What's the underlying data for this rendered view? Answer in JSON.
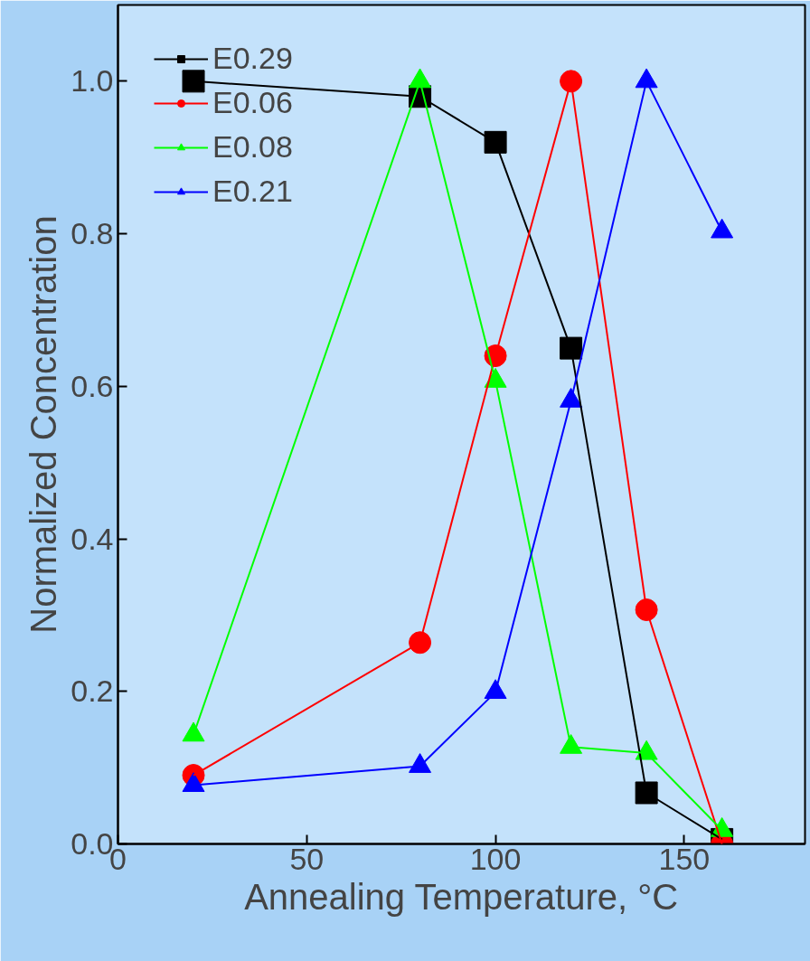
{
  "chart_data": {
    "type": "line",
    "xlabel": "Annealing Temperature, °C",
    "ylabel": "Normalized Concentration",
    "x": [
      20,
      80,
      100,
      120,
      140,
      160
    ],
    "series": [
      {
        "name": "E0.29",
        "color": "#000000",
        "marker": "square",
        "values": [
          1.0,
          0.98,
          0.92,
          0.65,
          0.067,
          0.006
        ]
      },
      {
        "name": "E0.06",
        "color": "#ff0000",
        "marker": "circle",
        "values": [
          0.09,
          0.264,
          0.64,
          1.0,
          0.307,
          0.0
        ]
      },
      {
        "name": "E0.08",
        "color": "#00ff00",
        "marker": "triangle",
        "values": [
          0.143,
          1.0,
          0.607,
          0.127,
          0.119,
          0.018
        ]
      },
      {
        "name": "E0.21",
        "color": "#0000ff",
        "marker": "triangle",
        "values": [
          0.077,
          0.102,
          0.199,
          0.581,
          1.0,
          0.803
        ]
      }
    ],
    "xlim": [
      0,
      182
    ],
    "ylim": [
      0,
      1.1
    ],
    "xticks": [
      0,
      50,
      100,
      150
    ],
    "yticks": [
      {
        "value": 0,
        "label": "0.0"
      },
      {
        "value": 0.2,
        "label": "0.2"
      },
      {
        "value": 0.4,
        "label": "0.4"
      },
      {
        "value": 0.6,
        "label": "0.6"
      },
      {
        "value": 0.8,
        "label": "0.8"
      },
      {
        "value": 1.0,
        "label": "1.0"
      }
    ],
    "grid": false,
    "legend": "top left"
  }
}
